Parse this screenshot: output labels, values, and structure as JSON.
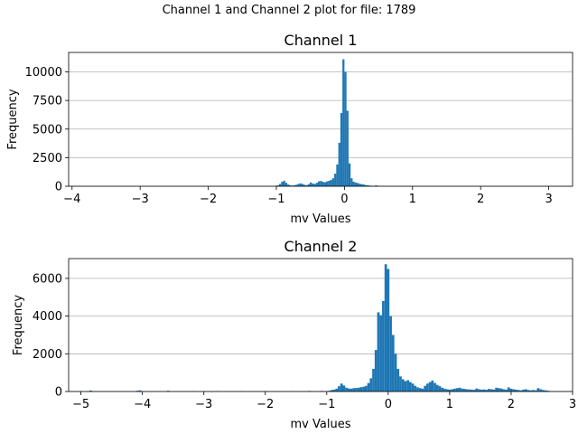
{
  "figure": {
    "suptitle": "Channel 1 and Channel 2 plot for file: 1789"
  },
  "chart_data": [
    {
      "type": "bar",
      "kind": "histogram",
      "title": "Channel 1",
      "xlabel": "mv Values",
      "ylabel": "Frequency",
      "xlim": [
        -4.05,
        3.35
      ],
      "ylim": [
        0,
        11700
      ],
      "xticks": [
        -4,
        -3,
        -2,
        -1,
        0,
        1,
        2,
        3
      ],
      "yticks": [
        0,
        2500,
        5000,
        7500,
        10000
      ],
      "grid": "y",
      "bar_color": "#1f77b4",
      "bin_width": 0.03,
      "x": [
        -1.02,
        -0.99,
        -0.96,
        -0.93,
        -0.9,
        -0.87,
        -0.84,
        -0.81,
        -0.78,
        -0.75,
        -0.72,
        -0.69,
        -0.66,
        -0.63,
        -0.6,
        -0.57,
        -0.54,
        -0.51,
        -0.48,
        -0.45,
        -0.42,
        -0.39,
        -0.36,
        -0.33,
        -0.3,
        -0.27,
        -0.24,
        -0.21,
        -0.18,
        -0.15,
        -0.12,
        -0.09,
        -0.06,
        -0.03,
        0.0,
        0.03,
        0.06,
        0.09,
        0.12,
        0.15,
        0.18,
        0.21,
        0.24,
        0.27,
        0.3,
        0.33,
        0.36,
        0.39,
        0.42,
        0.45,
        0.48,
        0.51,
        0.54
      ],
      "values": [
        40,
        90,
        200,
        380,
        480,
        300,
        150,
        80,
        60,
        90,
        130,
        200,
        250,
        200,
        130,
        90,
        180,
        330,
        240,
        200,
        300,
        430,
        460,
        380,
        350,
        420,
        480,
        560,
        700,
        1100,
        1900,
        3800,
        6400,
        11100,
        10000,
        6600,
        2000,
        700,
        400,
        320,
        280,
        220,
        180,
        150,
        100,
        80,
        60,
        40,
        30,
        80,
        40,
        20,
        10
      ]
    },
    {
      "type": "bar",
      "kind": "histogram",
      "title": "Channel 2",
      "xlabel": "mv Values",
      "ylabel": "Frequency",
      "xlim": [
        -5.2,
        3.0
      ],
      "ylim": [
        0,
        7050
      ],
      "xticks": [
        -5,
        -4,
        -3,
        -2,
        -1,
        0,
        1,
        2,
        3
      ],
      "yticks": [
        0,
        2000,
        4000,
        6000
      ],
      "grid": "y",
      "bar_color": "#1f77b4",
      "bin_width": 0.04,
      "x": [
        -4.9,
        -4.86,
        -4.1,
        -4.06,
        -3.6,
        -3.2,
        -2.8,
        -2.4,
        -2.0,
        -1.6,
        -1.3,
        -1.1,
        -0.98,
        -0.94,
        -0.9,
        -0.86,
        -0.82,
        -0.78,
        -0.74,
        -0.7,
        -0.66,
        -0.62,
        -0.58,
        -0.54,
        -0.5,
        -0.46,
        -0.42,
        -0.38,
        -0.34,
        -0.3,
        -0.26,
        -0.22,
        -0.18,
        -0.14,
        -0.1,
        -0.06,
        -0.02,
        0.02,
        0.06,
        0.1,
        0.14,
        0.18,
        0.22,
        0.26,
        0.3,
        0.34,
        0.38,
        0.42,
        0.46,
        0.5,
        0.54,
        0.58,
        0.62,
        0.66,
        0.7,
        0.74,
        0.78,
        0.82,
        0.86,
        0.9,
        0.94,
        0.98,
        1.02,
        1.06,
        1.1,
        1.14,
        1.18,
        1.22,
        1.26,
        1.3,
        1.34,
        1.38,
        1.42,
        1.46,
        1.5,
        1.54,
        1.58,
        1.62,
        1.66,
        1.7,
        1.74,
        1.78,
        1.82,
        1.86,
        1.9,
        1.94,
        1.98,
        2.02,
        2.06,
        2.1,
        2.14,
        2.18,
        2.22,
        2.26,
        2.3,
        2.34,
        2.38,
        2.42,
        2.46,
        2.5,
        2.54,
        2.58,
        2.62
      ],
      "values": [
        20,
        50,
        40,
        60,
        40,
        20,
        20,
        20,
        20,
        20,
        30,
        30,
        40,
        80,
        100,
        150,
        280,
        420,
        320,
        200,
        160,
        150,
        180,
        190,
        200,
        230,
        250,
        300,
        450,
        700,
        1200,
        2200,
        4200,
        4050,
        4800,
        6750,
        6500,
        4000,
        3000,
        2000,
        1200,
        800,
        650,
        550,
        600,
        500,
        420,
        300,
        220,
        180,
        150,
        300,
        420,
        500,
        580,
        450,
        350,
        280,
        200,
        150,
        120,
        100,
        120,
        150,
        180,
        200,
        160,
        140,
        120,
        110,
        100,
        90,
        160,
        120,
        100,
        110,
        90,
        140,
        120,
        100,
        200,
        180,
        160,
        120,
        100,
        220,
        150,
        120,
        100,
        80,
        60,
        100,
        120,
        80,
        60,
        80,
        60,
        180,
        120,
        80,
        60,
        40,
        20
      ]
    }
  ]
}
